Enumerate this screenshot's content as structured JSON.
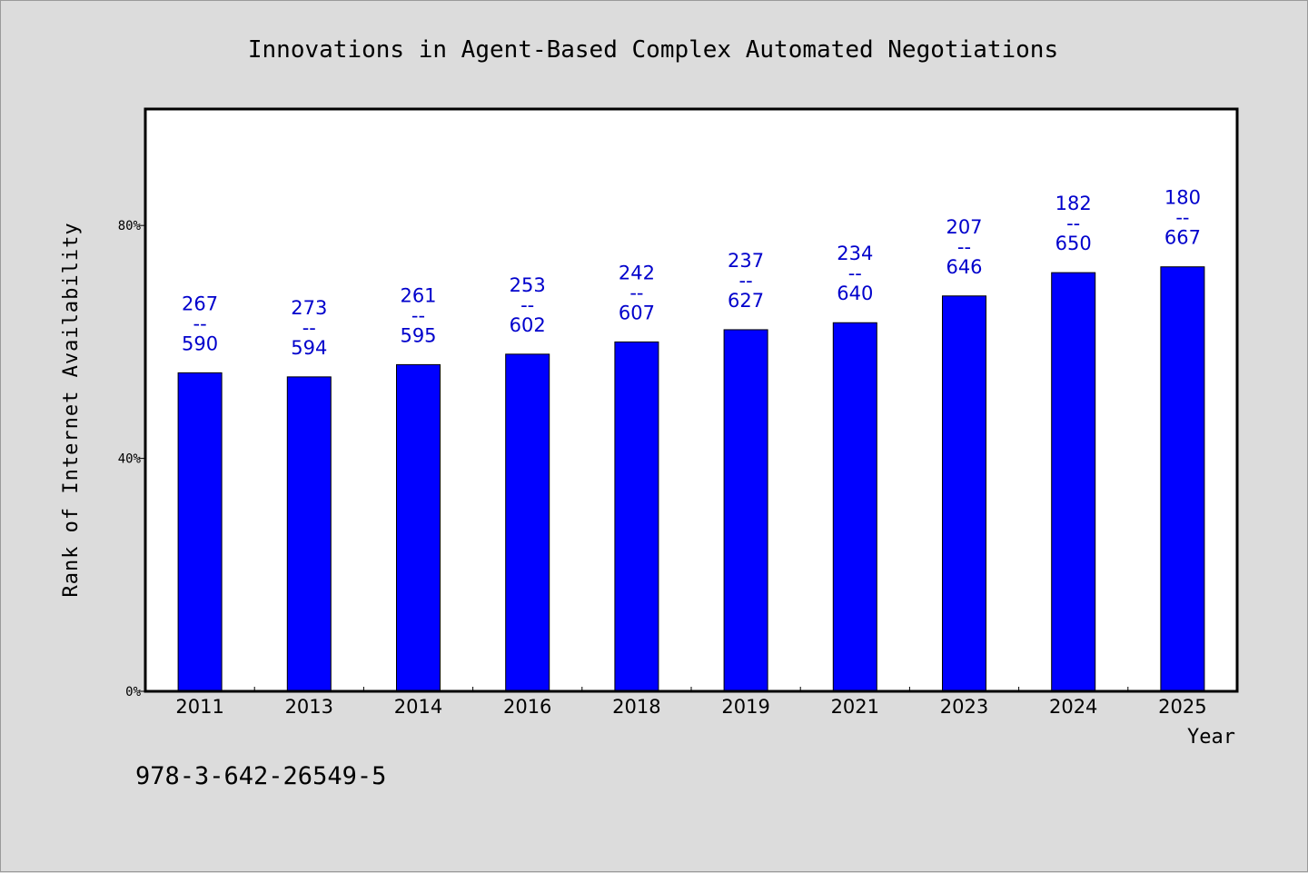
{
  "chart_data": {
    "type": "bar",
    "title": "Innovations in Agent-Based Complex Automated Negotiations",
    "xlabel": "Year",
    "ylabel": "Rank of Internet Availability",
    "footer_text": "978-3-642-26549-5",
    "categories": [
      "2011",
      "2013",
      "2014",
      "2016",
      "2018",
      "2019",
      "2021",
      "2023",
      "2024",
      "2025"
    ],
    "values": [
      54.7,
      54.0,
      56.1,
      57.9,
      60.0,
      62.1,
      63.3,
      67.9,
      71.9,
      72.9
    ],
    "ylim": [
      0,
      100
    ],
    "yticks": [
      0,
      40,
      80
    ],
    "ytick_labels": [
      "0%",
      "40%",
      "80%"
    ],
    "data_labels": [
      {
        "top": "267",
        "sep": "--",
        "bottom": "590"
      },
      {
        "top": "273",
        "sep": "--",
        "bottom": "594"
      },
      {
        "top": "261",
        "sep": "--",
        "bottom": "595"
      },
      {
        "top": "253",
        "sep": "--",
        "bottom": "602"
      },
      {
        "top": "242",
        "sep": "--",
        "bottom": "607"
      },
      {
        "top": "237",
        "sep": "--",
        "bottom": "627"
      },
      {
        "top": "234",
        "sep": "--",
        "bottom": "640"
      },
      {
        "top": "207",
        "sep": "--",
        "bottom": "646"
      },
      {
        "top": "182",
        "sep": "--",
        "bottom": "650"
      },
      {
        "top": "180",
        "sep": "--",
        "bottom": "667"
      }
    ],
    "grid": false,
    "legend": "none",
    "colors": {
      "bar": "#0000ff",
      "label": "#0000cc",
      "plot_background": "#ffffff",
      "page_background": "#dcdcdc"
    }
  }
}
